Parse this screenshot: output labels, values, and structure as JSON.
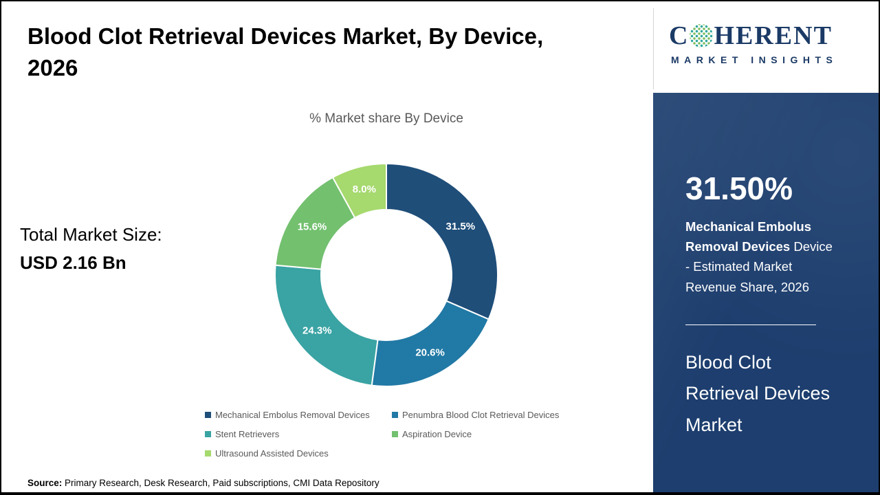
{
  "header": {
    "title_line1": "Blood Clot Retrieval Devices Market, By Device,",
    "title_line2": "2026"
  },
  "total_market": {
    "label": "Total Market Size:",
    "value": "USD 2.16 Bn"
  },
  "chart_data": {
    "type": "pie",
    "subtype": "donut",
    "title": "% Market share By Device",
    "categories": [
      "Mechanical Embolus Removal Devices",
      "Penumbra Blood Clot Retrieval Devices",
      "Stent Retrievers",
      "Aspiration Device",
      "Ultrasound Assisted Devices"
    ],
    "values": [
      31.5,
      20.6,
      24.3,
      15.6,
      8.0
    ],
    "labels": [
      "31.5%",
      "20.6%",
      "24.3%",
      "15.6%",
      "8.0%"
    ],
    "colors": [
      "#1F4E79",
      "#2179A5",
      "#3AA3A3",
      "#73C06F",
      "#A6D96E"
    ],
    "legend_position": "bottom",
    "start_angle_deg": -90,
    "direction": "clockwise"
  },
  "logo": {
    "name": "COHERENT",
    "part1": "C",
    "part2": "HERENT",
    "line2": "MARKET INSIGHTS"
  },
  "panel": {
    "stat": "31.50%",
    "description_bold": "Mechanical Embolus Removal Devices",
    "description_rest": " Device - Estimated Market Revenue Share, 2026",
    "market_name": "Blood Clot Retrieval Devices Market"
  },
  "source": {
    "label": "Source:",
    "text": " Primary Research, Desk Research, Paid subscriptions, CMI Data Repository"
  }
}
